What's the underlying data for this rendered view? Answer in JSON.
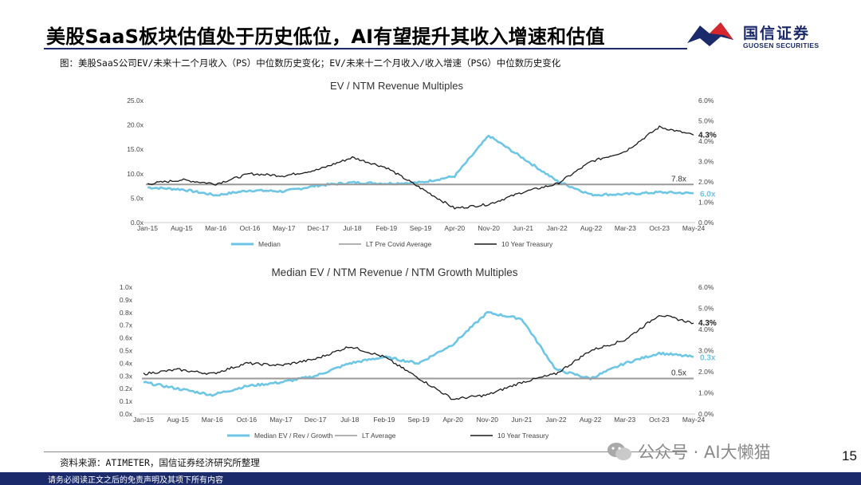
{
  "slide": {
    "title": "美股SaaS板块估值处于历史低位，AI有望提升其收入增速和估值",
    "caption": "图：美股SaaS公司EV/未来十二个月收入（PS）中位数历史变化；EV/未来十二个月收入/收入增速（PSG）中位数历史变化",
    "source": "资料来源：ATIMETER，国信证券经济研究所整理",
    "page_number": "15",
    "footer": "请务必阅读正文之后的免责声明及其项下所有内容",
    "watermark": "公众号 · AI大懒猫"
  },
  "logo": {
    "name": "国信证券",
    "english": "GUOSEN SECURITIES"
  },
  "colors": {
    "median": "#6ec6e6",
    "treasury": "#1a1a1a",
    "reference": "#999999",
    "brand": "#1b2a6b",
    "brand_red": "#d7262e"
  },
  "chart_data": [
    {
      "type": "line",
      "title": "EV / NTM Revenue Multiples",
      "categories": [
        "Jan-15",
        "Aug-15",
        "Mar-16",
        "Oct-16",
        "May-17",
        "Dec-17",
        "Jul-18",
        "Feb-19",
        "Sep-19",
        "Apr-20",
        "Nov-20",
        "Jun-21",
        "Jan-22",
        "Aug-22",
        "Mar-23",
        "Oct-23",
        "May-24"
      ],
      "y_left": {
        "ticks": [
          "0.0x",
          "5.0x",
          "10.0x",
          "15.0x",
          "20.0x",
          "25.0x"
        ],
        "range": [
          0,
          25
        ]
      },
      "y_right": {
        "ticks": [
          "0.0%",
          "1.0%",
          "2.0%",
          "3.0%",
          "4.0%",
          "5.0%",
          "6.0%"
        ],
        "range": [
          0,
          6
        ]
      },
      "series": [
        {
          "name": "Median",
          "axis": "left",
          "values": [
            7.2,
            6.8,
            5.6,
            6.6,
            6.4,
            7.6,
            8.2,
            8.0,
            8.2,
            9.5,
            17.8,
            13.2,
            8.5,
            5.7,
            5.8,
            6.2,
            6.0
          ]
        },
        {
          "name": "LT Pre Covid Average",
          "axis": "left",
          "constant": 7.8
        },
        {
          "name": "10 Year Treasury",
          "axis": "right",
          "values": [
            1.9,
            2.1,
            1.9,
            2.4,
            2.3,
            2.6,
            3.2,
            2.7,
            1.7,
            0.7,
            0.9,
            1.5,
            1.9,
            3.0,
            3.5,
            4.7,
            4.3
          ]
        }
      ],
      "annotations": [
        "7.8x",
        "6.0x",
        "4.3%"
      ],
      "legend": "bottom"
    },
    {
      "type": "line",
      "title": "Median EV / NTM Revenue / NTM Growth Multiples",
      "categories": [
        "Jan-15",
        "Aug-15",
        "Mar-16",
        "Oct-16",
        "May-17",
        "Dec-17",
        "Jul-18",
        "Feb-19",
        "Sep-19",
        "Apr-20",
        "Nov-20",
        "Jun-21",
        "Jan-22",
        "Aug-22",
        "Mar-23",
        "Oct-23",
        "May-24"
      ],
      "y_left": {
        "ticks": [
          "0.0x",
          "0.1x",
          "0.2x",
          "0.3x",
          "0.4x",
          "0.5x",
          "0.6x",
          "0.7x",
          "0.8x",
          "0.9x",
          "1.0x"
        ],
        "range": [
          0,
          1
        ]
      },
      "y_right": {
        "ticks": [
          "0.0%",
          "1.0%",
          "2.0%",
          "3.0%",
          "4.0%",
          "5.0%",
          "6.0%"
        ],
        "range": [
          0,
          6
        ]
      },
      "series": [
        {
          "name": "Median EV / Rev / Growth",
          "axis": "left",
          "values": [
            0.25,
            0.2,
            0.15,
            0.22,
            0.25,
            0.3,
            0.4,
            0.45,
            0.4,
            0.55,
            0.8,
            0.75,
            0.35,
            0.28,
            0.4,
            0.48,
            0.45
          ]
        },
        {
          "name": "LT Average",
          "axis": "left",
          "constant": 0.28
        },
        {
          "name": "10 Year Treasury",
          "axis": "right",
          "values": [
            1.9,
            2.1,
            1.9,
            2.4,
            2.3,
            2.6,
            3.2,
            2.7,
            1.7,
            0.7,
            0.9,
            1.5,
            1.9,
            3.0,
            3.5,
            4.7,
            4.3
          ]
        }
      ],
      "annotations": [
        "0.5x",
        "0.3x",
        "4.3%"
      ],
      "legend": "bottom"
    }
  ]
}
